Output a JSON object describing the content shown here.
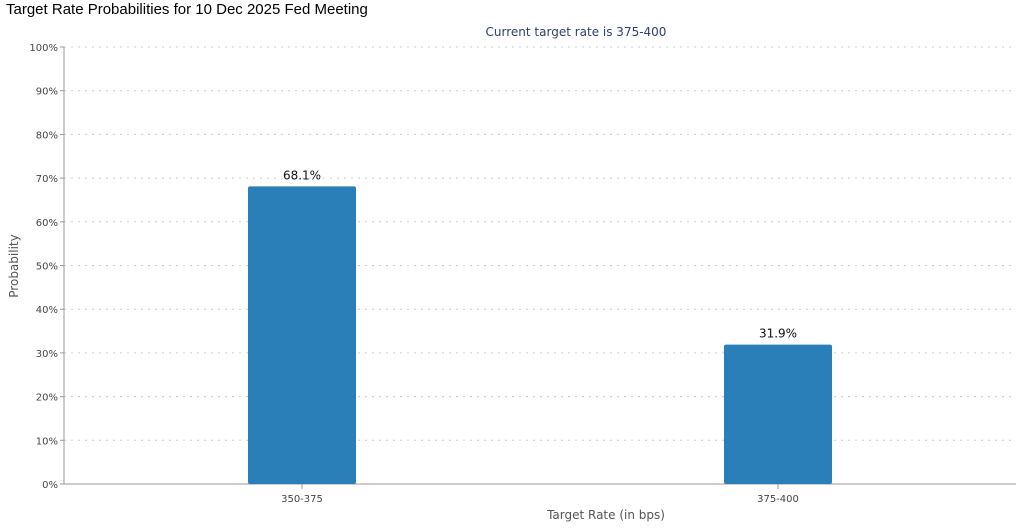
{
  "page": {
    "title": "Target Rate Probabilities for 10 Dec 2025 Fed Meeting"
  },
  "colors": {
    "bar": "#2a7fb8",
    "subtitle": "#2e3f6e",
    "grid": "#cccccc",
    "axis": "#999999"
  },
  "chart_data": {
    "type": "bar",
    "title": "Target Rate Probabilities for 10 Dec 2025 Fed Meeting",
    "subtitle": "Current target rate is 375-400",
    "xlabel": "Target Rate (in bps)",
    "ylabel": "Probability",
    "categories": [
      "350-375",
      "375-400"
    ],
    "values": [
      68.1,
      31.9
    ],
    "data_labels": [
      "68.1%",
      "31.9%"
    ],
    "ylim": [
      0,
      100
    ],
    "yticks": [
      0,
      10,
      20,
      30,
      40,
      50,
      60,
      70,
      80,
      90,
      100
    ],
    "ytick_labels": [
      "0%",
      "10%",
      "20%",
      "30%",
      "40%",
      "50%",
      "60%",
      "70%",
      "80%",
      "90%",
      "100%"
    ],
    "grid": true,
    "legend": "none"
  }
}
